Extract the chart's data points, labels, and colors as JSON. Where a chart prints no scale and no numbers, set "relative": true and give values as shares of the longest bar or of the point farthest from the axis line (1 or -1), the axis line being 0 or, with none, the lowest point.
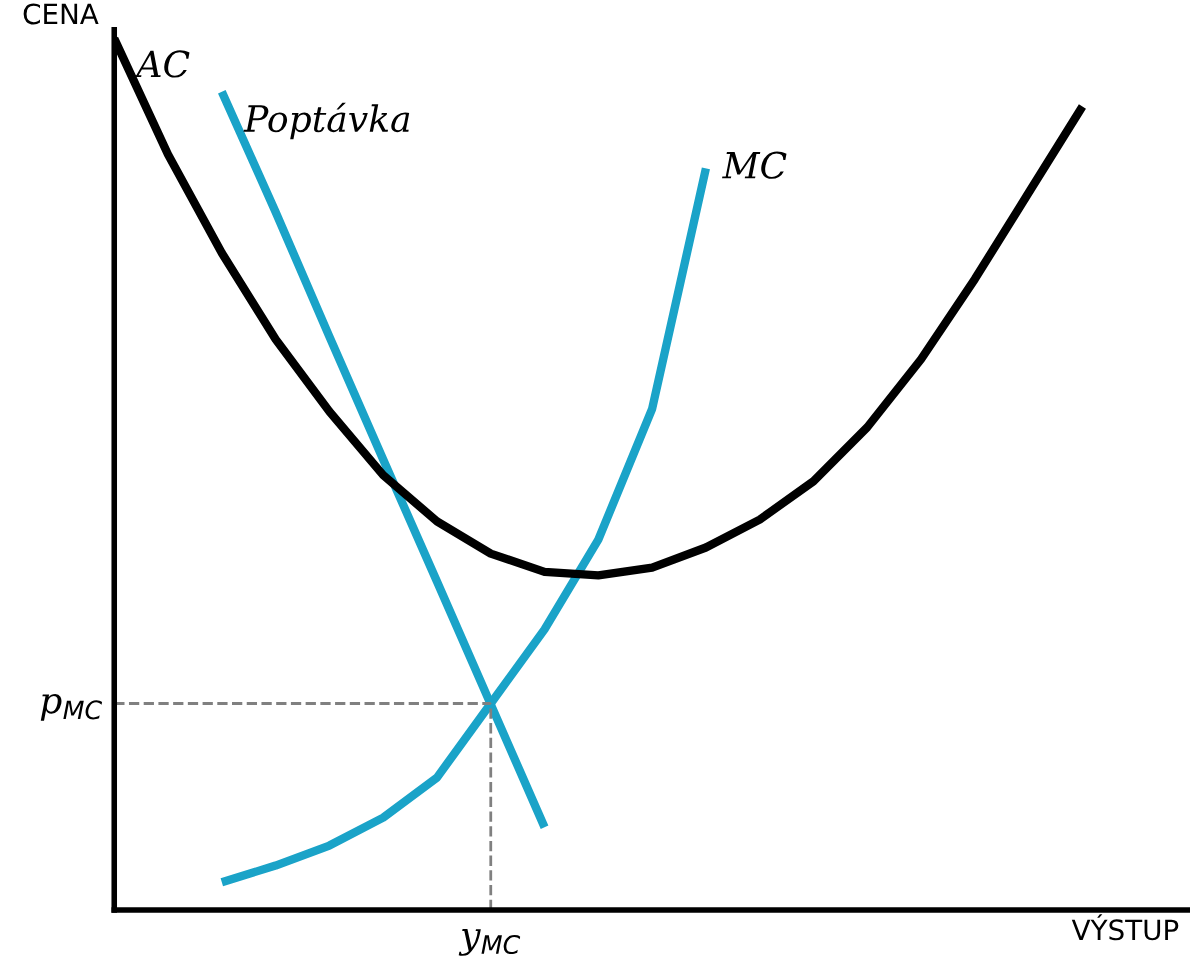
{
  "chart_data": {
    "type": "line",
    "relative": true,
    "xlabel": "VÝSTUP",
    "ylabel": "CENA",
    "legend": false,
    "marker": "none",
    "line_style": "solid",
    "categories": [
      null,
      null,
      null,
      null,
      null,
      null,
      null,
      null,
      null,
      null,
      null,
      null,
      null,
      null,
      null,
      null,
      null,
      null,
      null,
      null,
      null
    ],
    "series": [
      {
        "name": "Poptávka",
        "color": "#1aa3c8",
        "values": [
          null,
          null,
          0.939,
          0.801,
          0.658,
          0.517,
          0.377,
          0.236,
          0.095,
          null,
          null,
          null,
          null,
          null,
          null,
          null,
          null,
          null,
          null,
          null,
          null
        ]
      },
      {
        "name": "MC",
        "color": "#1aa3c8",
        "values": [
          null,
          null,
          0.032,
          0.051,
          0.074,
          0.106,
          0.152,
          0.237,
          0.322,
          0.425,
          0.575,
          0.851,
          null,
          null,
          null,
          null,
          null,
          null,
          null,
          null,
          null
        ]
      },
      {
        "name": "AC",
        "color": "#000000",
        "values": [
          1.0,
          0.867,
          0.754,
          0.655,
          0.572,
          0.499,
          0.446,
          0.409,
          0.388,
          0.384,
          0.393,
          0.416,
          0.448,
          0.492,
          0.554,
          0.632,
          0.724,
          0.823,
          0.922,
          null,
          null
        ]
      }
    ],
    "ref_lines": [
      {
        "axis": "y",
        "value": 0.237,
        "label": "p$_{MC}$",
        "color": "#808080",
        "line_style": "dashed"
      },
      {
        "axis": "x",
        "label": "y$_{MC}$",
        "color": "#808080",
        "line_style": "dashed"
      }
    ]
  }
}
